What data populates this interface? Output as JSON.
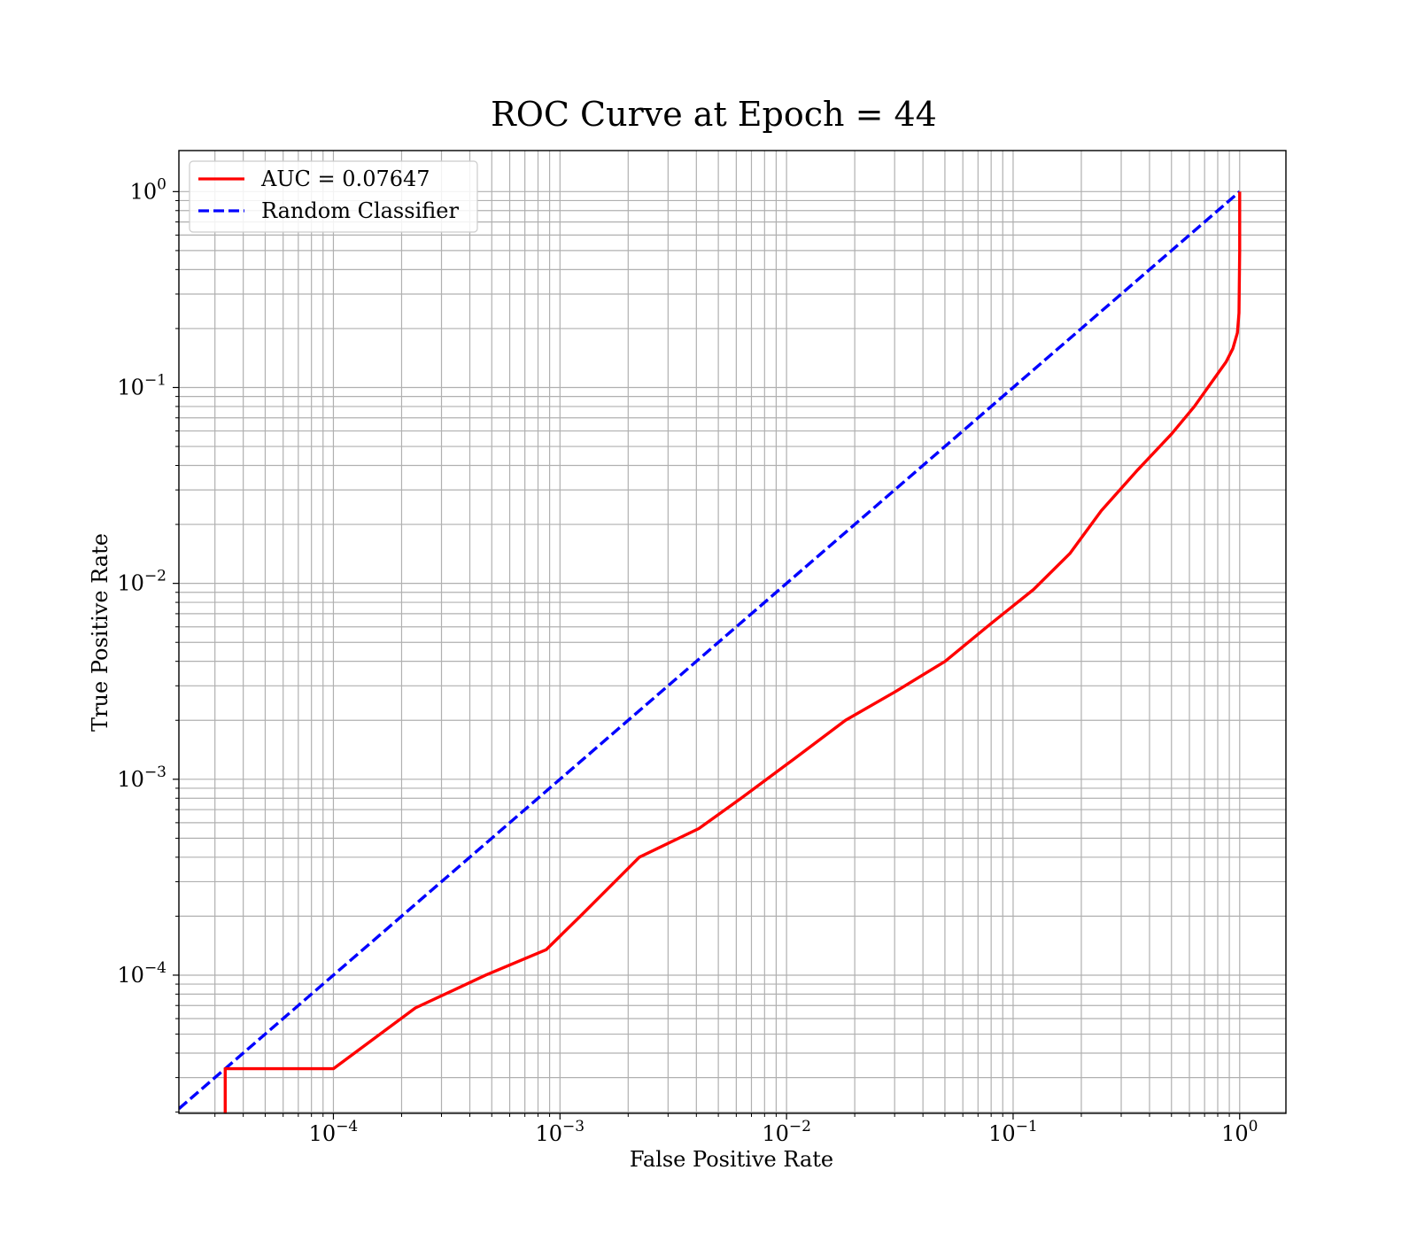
{
  "chart_data": {
    "type": "line",
    "title": "ROC Curve at Epoch = 44",
    "xlabel": "False Positive Rate",
    "ylabel": "True Positive Rate",
    "xscale": "log",
    "yscale": "log",
    "xlim": [
      2.08e-05,
      1.6
    ],
    "ylim": [
      1.97e-05,
      1.62
    ],
    "grid": "both major and minor",
    "legend_position": "upper-left",
    "x_ticks": [
      {
        "base": "10",
        "exp": "−4",
        "value": 0.0001
      },
      {
        "base": "10",
        "exp": "−3",
        "value": 0.001
      },
      {
        "base": "10",
        "exp": "−2",
        "value": 0.01
      },
      {
        "base": "10",
        "exp": "−1",
        "value": 0.1
      },
      {
        "base": "10",
        "exp": "0",
        "value": 1
      }
    ],
    "y_ticks": [
      {
        "base": "10",
        "exp": "0",
        "value": 1
      },
      {
        "base": "10",
        "exp": "−1",
        "value": 0.1
      },
      {
        "base": "10",
        "exp": "−2",
        "value": 0.01
      },
      {
        "base": "10",
        "exp": "−3",
        "value": 0.001
      },
      {
        "base": "10",
        "exp": "−4",
        "value": 0.0001
      }
    ],
    "series": [
      {
        "name": "AUC = 0.07647",
        "color": "#ff0000",
        "style": "solid",
        "x": [
          3.33e-05,
          3.33e-05,
          0.0001,
          0.00023,
          0.00047,
          0.00087,
          0.00123,
          0.00224,
          0.0041,
          0.0063,
          0.0107,
          0.0182,
          0.0302,
          0.0501,
          0.0794,
          0.123,
          0.178,
          0.245,
          0.355,
          0.501,
          0.631,
          0.759,
          0.871,
          0.933,
          0.977,
          0.993,
          1.0,
          1.0
        ],
        "y": [
          1.97e-05,
          3.33e-05,
          3.33e-05,
          6.8e-05,
          0.0001,
          0.000135,
          0.0002,
          0.0004,
          0.00056,
          0.0008,
          0.00126,
          0.002,
          0.0028,
          0.004,
          0.0062,
          0.0093,
          0.0142,
          0.0235,
          0.038,
          0.058,
          0.08,
          0.108,
          0.135,
          0.158,
          0.19,
          0.24,
          0.5,
          1.0
        ]
      },
      {
        "name": "Random Classifier",
        "color": "#0000ff",
        "style": "dashed",
        "x": [
          2.08e-05,
          1.0
        ],
        "y": [
          2.08e-05,
          1.0
        ]
      }
    ]
  }
}
